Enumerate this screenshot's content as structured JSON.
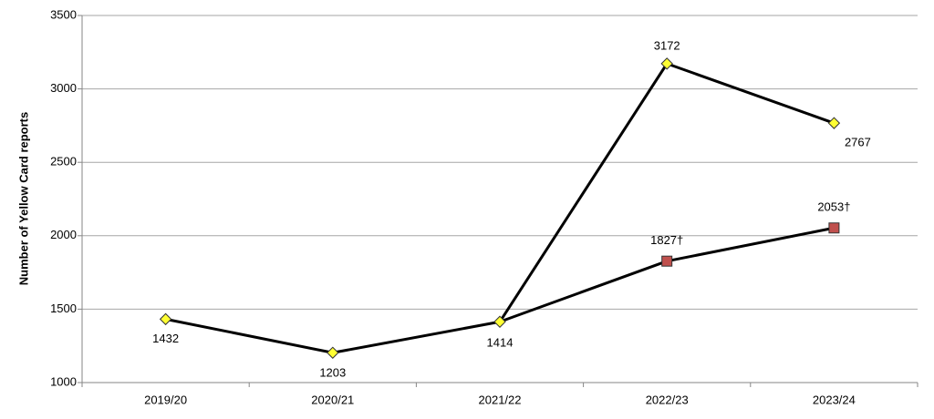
{
  "chart_data": {
    "type": "line",
    "y_label": "Number of Yellow Card reports",
    "categories": [
      "2019/20",
      "2020/21",
      "2021/22",
      "2022/23",
      "2023/24"
    ],
    "series": [
      {
        "color": "#ffff33",
        "marker": "diamond",
        "values": [
          1432,
          1203,
          1414,
          3172,
          2767
        ]
      },
      {
        "color": "#c0504d",
        "marker": "square",
        "values": [
          null,
          null,
          1414,
          1827,
          2053
        ],
        "value_labels": [
          null,
          null,
          null,
          "1827†",
          "2053†"
        ]
      }
    ],
    "ylim": [
      1000,
      3500
    ],
    "yticks": [
      1000,
      1500,
      2000,
      2500,
      3000,
      3500
    ],
    "grid": true
  }
}
